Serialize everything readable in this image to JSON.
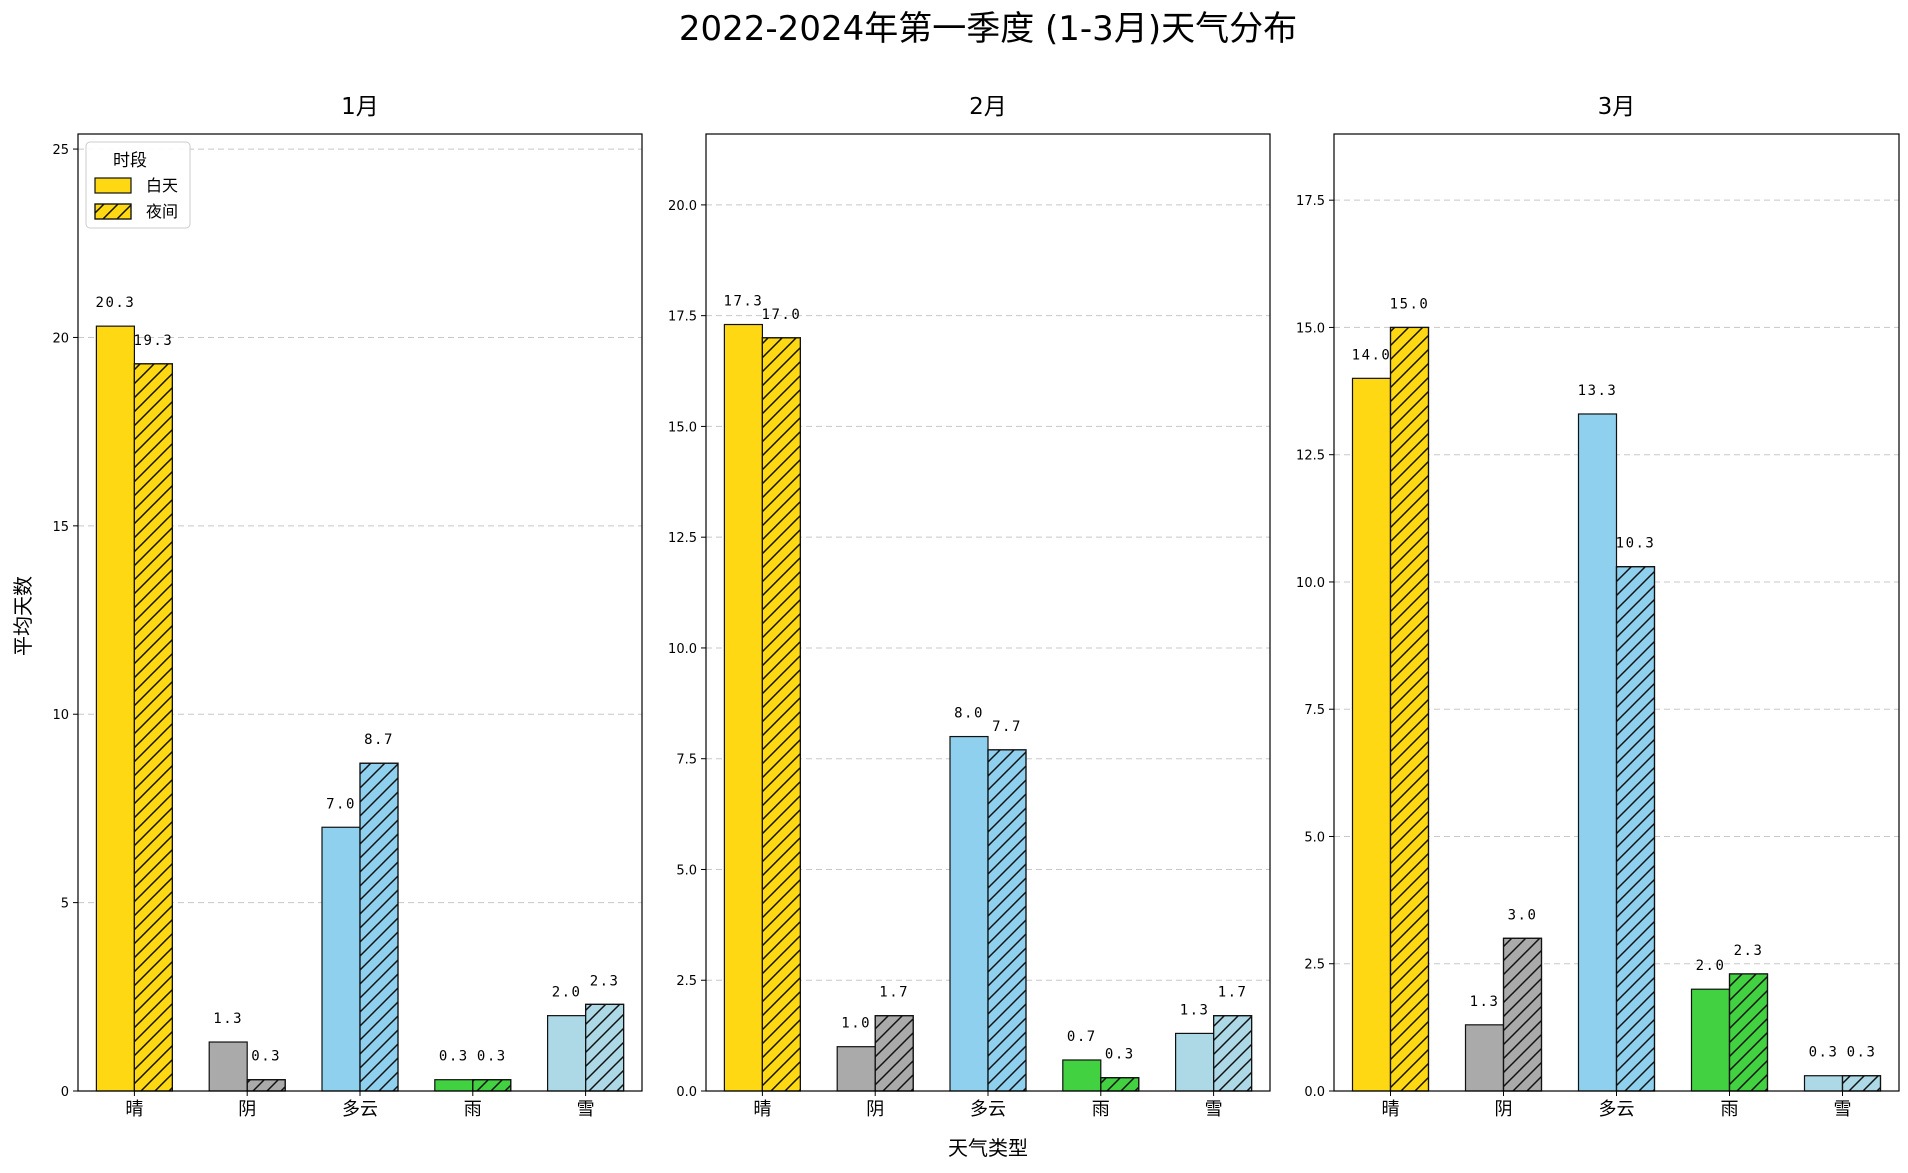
{
  "chart_data": {
    "title": "2022-2024年第一季度 (1-3月)天气分布",
    "xlabel": "天气类型",
    "ylabel": "平均天数",
    "legend": {
      "title": "时段",
      "placement": "upper-left",
      "entries": [
        "白天",
        "夜间"
      ]
    },
    "colors": {
      "晴": "#FFD814",
      "阴": "#AAAAAA",
      "多云": "#8FD0EE",
      "雨": "#41D141",
      "雪": "#ADD8E6"
    },
    "subplots": [
      {
        "type": "bar",
        "title": "1月",
        "categories": [
          "晴",
          "阴",
          "多云",
          "雨",
          "雪"
        ],
        "series": [
          {
            "name": "白天",
            "values": [
              20.3,
              1.3,
              7.0,
              0.3,
              2.0
            ]
          },
          {
            "name": "夜间",
            "values": [
              19.3,
              0.3,
              8.7,
              0.3,
              2.3
            ]
          }
        ],
        "ylim": [
          0,
          25.4
        ],
        "yticks": [
          0,
          5,
          10,
          15,
          20,
          25
        ],
        "ytick_labels": [
          "0",
          "5",
          "10",
          "15",
          "20",
          "25"
        ],
        "grid": "y-dashed"
      },
      {
        "type": "bar",
        "title": "2月",
        "categories": [
          "晴",
          "阴",
          "多云",
          "雨",
          "雪"
        ],
        "series": [
          {
            "name": "白天",
            "values": [
              17.3,
              1.0,
              8.0,
              0.7,
              1.3
            ]
          },
          {
            "name": "夜间",
            "values": [
              17.0,
              1.7,
              7.7,
              0.3,
              1.7
            ]
          }
        ],
        "ylim": [
          0,
          21.6
        ],
        "yticks": [
          0,
          2.5,
          5,
          7.5,
          10,
          12.5,
          15,
          17.5,
          20
        ],
        "ytick_labels": [
          "0.0",
          "2.5",
          "5.0",
          "7.5",
          "10.0",
          "12.5",
          "15.0",
          "17.5",
          "20.0"
        ],
        "grid": "y-dashed"
      },
      {
        "type": "bar",
        "title": "3月",
        "categories": [
          "晴",
          "阴",
          "多云",
          "雨",
          "雪"
        ],
        "series": [
          {
            "name": "白天",
            "values": [
              14.0,
              1.3,
              13.3,
              2.0,
              0.3
            ]
          },
          {
            "name": "夜间",
            "values": [
              15.0,
              3.0,
              10.3,
              2.3,
              0.3
            ]
          }
        ],
        "ylim": [
          0,
          18.8
        ],
        "yticks": [
          0,
          2.5,
          5,
          7.5,
          10,
          12.5,
          15,
          17.5
        ],
        "ytick_labels": [
          "0.0",
          "2.5",
          "5.0",
          "7.5",
          "10.0",
          "12.5",
          "15.0",
          "17.5"
        ],
        "grid": "y-dashed"
      }
    ]
  }
}
